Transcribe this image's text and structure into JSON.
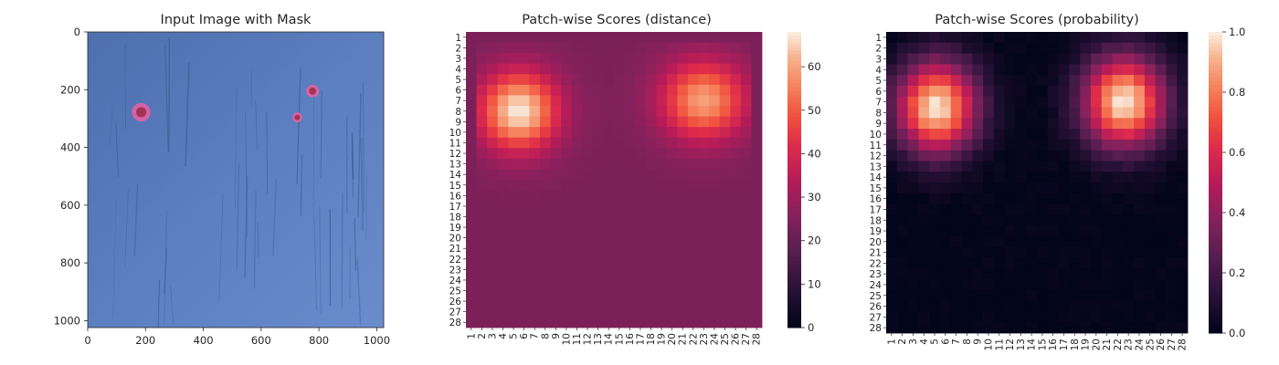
{
  "chart_data": [
    {
      "type": "image",
      "title": "Input Image with Mask",
      "x_ticks": [
        0,
        200,
        400,
        600,
        800,
        1000
      ],
      "y_ticks": [
        0,
        200,
        400,
        600,
        800,
        1000
      ],
      "xlim": [
        0,
        1024
      ],
      "ylim": [
        1024,
        0
      ],
      "colors": {
        "background": "#5b7fbf",
        "grain": "#3f5a92",
        "mask": "#ff5ca0",
        "spot_core": "#9a2a45"
      },
      "defects": [
        {
          "x": 185,
          "y": 278,
          "r": 32
        },
        {
          "x": 778,
          "y": 205,
          "r": 22
        },
        {
          "x": 725,
          "y": 296,
          "r": 17
        }
      ]
    },
    {
      "type": "heatmap",
      "title": "Patch-wise Scores (distance)",
      "rows": [
        "1",
        "2",
        "3",
        "4",
        "5",
        "6",
        "7",
        "8",
        "9",
        "10",
        "11",
        "12",
        "13",
        "14",
        "15",
        "16",
        "17",
        "18",
        "19",
        "20",
        "21",
        "22",
        "23",
        "24",
        "25",
        "26",
        "27",
        "28"
      ],
      "cols": [
        "1",
        "2",
        "3",
        "4",
        "5",
        "6",
        "7",
        "8",
        "9",
        "10",
        "11",
        "12",
        "13",
        "14",
        "15",
        "16",
        "17",
        "18",
        "19",
        "20",
        "21",
        "22",
        "23",
        "24",
        "25",
        "26",
        "27",
        "28"
      ],
      "colormap": "rocket",
      "vmin": 0,
      "vmax": 68,
      "colorbar_ticks": [
        0,
        10,
        20,
        30,
        40,
        50,
        60
      ],
      "model": {
        "base": 24,
        "border": 18,
        "peaks": [
          {
            "row": 8,
            "col": 5.5,
            "amp": 44,
            "sx": 2.6,
            "sy": 2.6
          },
          {
            "row": 7,
            "col": 23,
            "amp": 36,
            "sx": 2.8,
            "sy": 2.6
          }
        ]
      }
    },
    {
      "type": "heatmap",
      "title": "Patch-wise Scores (probability)",
      "rows": [
        "1",
        "2",
        "3",
        "4",
        "5",
        "6",
        "7",
        "8",
        "9",
        "10",
        "11",
        "12",
        "13",
        "14",
        "15",
        "16",
        "17",
        "18",
        "19",
        "20",
        "21",
        "22",
        "23",
        "24",
        "25",
        "26",
        "27",
        "28"
      ],
      "cols": [
        "1",
        "2",
        "3",
        "4",
        "5",
        "6",
        "7",
        "8",
        "9",
        "10",
        "11",
        "12",
        "13",
        "14",
        "15",
        "16",
        "17",
        "18",
        "19",
        "20",
        "21",
        "22",
        "23",
        "24",
        "25",
        "26",
        "27",
        "28"
      ],
      "colormap": "rocket",
      "vmin": 0.0,
      "vmax": 1.0,
      "colorbar_ticks": [
        "0.0",
        "0.2",
        "0.4",
        "0.6",
        "0.8",
        "1.0"
      ],
      "model": {
        "peaks": [
          {
            "row": 7.5,
            "col": 5.2,
            "amp": 1.0,
            "sx": 2.6,
            "sy": 3.0
          },
          {
            "row": 7.0,
            "col": 22.6,
            "amp": 1.0,
            "sx": 2.7,
            "sy": 3.0
          }
        ],
        "noise": 0.04
      }
    }
  ]
}
